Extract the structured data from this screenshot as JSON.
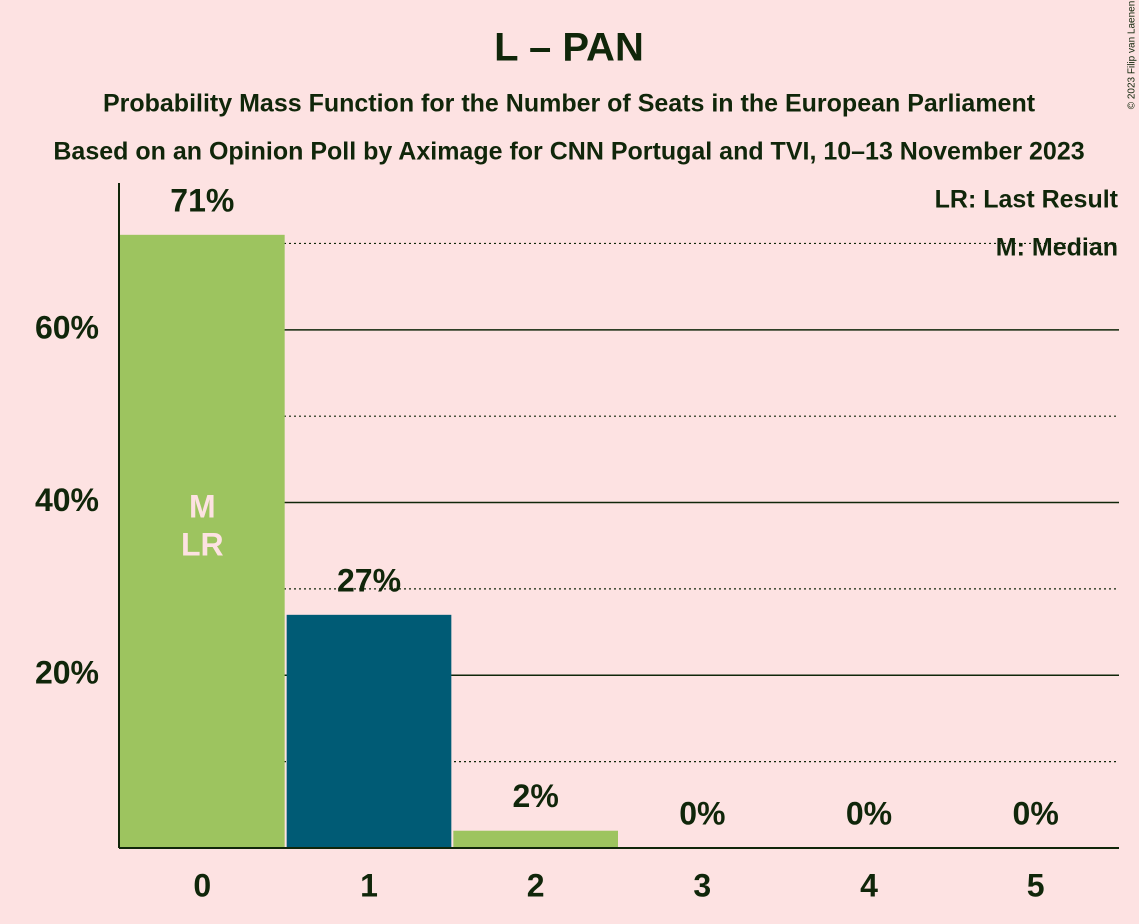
{
  "chart_data": {
    "type": "bar",
    "title": "L – PAN",
    "subtitle": "Probability Mass Function for the Number of Seats in the European Parliament",
    "subtitle2": "Based on an Opinion Poll by Aximage for CNN Portugal and TVI, 10–13 November 2023",
    "copyright": "© 2023 Filip van Laenen",
    "categories": [
      "0",
      "1",
      "2",
      "3",
      "4",
      "5"
    ],
    "values": [
      71,
      27,
      2,
      0,
      0,
      0
    ],
    "value_labels": [
      "71%",
      "27%",
      "2%",
      "0%",
      "0%",
      "0%"
    ],
    "colors": [
      "#9dc45f",
      "#005b75",
      "#9dc45f",
      "#9dc45f",
      "#9dc45f",
      "#9dc45f"
    ],
    "ylim": [
      0,
      77
    ],
    "yticks": [
      {
        "value": 20,
        "label": "20%"
      },
      {
        "value": 40,
        "label": "40%"
      },
      {
        "value": 60,
        "label": "60%"
      }
    ],
    "minor_yticks": [
      10,
      30,
      50,
      70
    ],
    "grid": true,
    "median": {
      "label": "M",
      "seats": 0
    },
    "last_result": {
      "label": "LR",
      "seats": 0
    },
    "legend": [
      "LR: Last Result",
      "M: Median"
    ],
    "legend_position": "upper right"
  }
}
